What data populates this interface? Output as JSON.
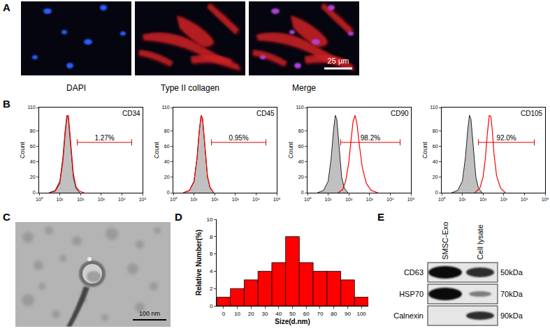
{
  "panel_labels": [
    "A",
    "B",
    "C",
    "D",
    "E"
  ],
  "panel_a": {
    "images": [
      "DAPI",
      "Type II collagen",
      "Merge"
    ],
    "scale_bar": "25 μm"
  },
  "panel_c": {
    "scale_bar": "100 nm"
  },
  "panel_e": {
    "lanes": [
      "SMSC-Exo",
      "Cell lysate"
    ],
    "rows": [
      {
        "label": "CD63",
        "size": "50kDa"
      },
      {
        "label": "HSP70",
        "size": "70kDa"
      },
      {
        "label": "Calnexin",
        "size": "90kDa"
      }
    ]
  },
  "chart_data": [
    {
      "type": "line",
      "title": "CD34",
      "ylabel": "Count",
      "log": "x",
      "xlim": [
        1,
        100000
      ],
      "xticks": [
        {
          "value": 1,
          "label": "10⁰"
        },
        {
          "value": 10,
          "label": "10¹"
        },
        {
          "value": 100,
          "label": "10²"
        },
        {
          "value": 1000,
          "label": "10³"
        },
        {
          "value": 10000,
          "label": "10⁴"
        },
        {
          "value": 100000,
          "label": "10⁵"
        }
      ],
      "ylim": [
        0,
        110
      ],
      "yticks": [
        0,
        20,
        40,
        60,
        80,
        110
      ],
      "gate": {
        "label": "1.27%",
        "x": [
          70,
          30000
        ],
        "y": 65
      },
      "series": [
        {
          "type": "area",
          "color": "#c0c0c0",
          "x": [
            3,
            6,
            10,
            14,
            18,
            22,
            26,
            30,
            36,
            45,
            60,
            90
          ],
          "values": [
            0,
            3,
            15,
            45,
            80,
            100,
            95,
            75,
            45,
            20,
            6,
            0
          ]
        },
        {
          "type": "line",
          "color": "#ff0000",
          "x": [
            3,
            6,
            10,
            14,
            18,
            22,
            26,
            30,
            36,
            45,
            60,
            90,
            150
          ],
          "values": [
            0,
            2,
            12,
            40,
            75,
            98,
            100,
            80,
            50,
            25,
            8,
            2,
            0
          ]
        }
      ]
    },
    {
      "type": "line",
      "title": "CD45",
      "ylabel": "Count",
      "log": "x",
      "xlim": [
        1,
        100000
      ],
      "xticks": [
        {
          "value": 1,
          "label": "10⁰"
        },
        {
          "value": 10,
          "label": "10¹"
        },
        {
          "value": 100,
          "label": "10²"
        },
        {
          "value": 1000,
          "label": "10³"
        },
        {
          "value": 10000,
          "label": "10⁴"
        },
        {
          "value": 100000,
          "label": "10⁵"
        }
      ],
      "ylim": [
        0,
        110
      ],
      "yticks": [
        0,
        20,
        40,
        60,
        80,
        110
      ],
      "gate": {
        "label": "0.95%",
        "x": [
          70,
          30000
        ],
        "y": 65
      },
      "series": [
        {
          "type": "area",
          "color": "#c0c0c0",
          "x": [
            3,
            6,
            10,
            14,
            18,
            22,
            26,
            30,
            36,
            45,
            60,
            90
          ],
          "values": [
            0,
            3,
            15,
            45,
            80,
            100,
            95,
            75,
            45,
            20,
            6,
            0
          ]
        },
        {
          "type": "line",
          "color": "#ff0000",
          "x": [
            3,
            6,
            10,
            14,
            18,
            22,
            26,
            30,
            36,
            45,
            60,
            90
          ],
          "values": [
            0,
            3,
            14,
            44,
            80,
            100,
            96,
            76,
            46,
            21,
            7,
            0
          ]
        }
      ]
    },
    {
      "type": "line",
      "title": "CD90",
      "ylabel": "Count",
      "log": "x",
      "xlim": [
        1,
        100000
      ],
      "xticks": [
        {
          "value": 1,
          "label": "10⁰"
        },
        {
          "value": 10,
          "label": "10¹"
        },
        {
          "value": 100,
          "label": "10²"
        },
        {
          "value": 1000,
          "label": "10³"
        },
        {
          "value": 10000,
          "label": "10⁴"
        },
        {
          "value": 100000,
          "label": "10⁵"
        }
      ],
      "ylim": [
        0,
        110
      ],
      "yticks": [
        0,
        20,
        40,
        60,
        80,
        110
      ],
      "gate": {
        "label": "98.2%",
        "x": [
          40,
          30000
        ],
        "y": 65
      },
      "series": [
        {
          "type": "area",
          "color": "#c0c0c0",
          "x": [
            3,
            6,
            10,
            14,
            18,
            22,
            26,
            30,
            36,
            45,
            60,
            90
          ],
          "values": [
            0,
            3,
            15,
            45,
            80,
            100,
            95,
            75,
            45,
            20,
            6,
            0
          ]
        },
        {
          "type": "line",
          "color": "#ff0000",
          "x": [
            30,
            50,
            70,
            100,
            130,
            160,
            200,
            250,
            320,
            450,
            700,
            1200,
            2500
          ],
          "values": [
            0,
            4,
            15,
            40,
            70,
            92,
            100,
            88,
            62,
            32,
            12,
            3,
            0
          ]
        }
      ]
    },
    {
      "type": "line",
      "title": "CD105",
      "ylabel": "Count",
      "log": "x",
      "xlim": [
        1,
        100000
      ],
      "xticks": [
        {
          "value": 1,
          "label": "10⁰"
        },
        {
          "value": 10,
          "label": "10¹"
        },
        {
          "value": 100,
          "label": "10²"
        },
        {
          "value": 1000,
          "label": "10³"
        },
        {
          "value": 10000,
          "label": "10⁴"
        },
        {
          "value": 100000,
          "label": "10⁵"
        }
      ],
      "ylim": [
        0,
        110
      ],
      "yticks": [
        0,
        20,
        40,
        60,
        80,
        110
      ],
      "gate": {
        "label": "92.0%",
        "x": [
          60,
          30000
        ],
        "y": 65
      },
      "series": [
        {
          "type": "area",
          "color": "#c0c0c0",
          "x": [
            3,
            6,
            10,
            14,
            18,
            22,
            26,
            30,
            36,
            45,
            60,
            90
          ],
          "values": [
            0,
            3,
            15,
            45,
            80,
            100,
            95,
            75,
            45,
            20,
            6,
            0
          ]
        },
        {
          "type": "line",
          "color": "#ff0000",
          "x": [
            40,
            70,
            100,
            130,
            160,
            200,
            240,
            280,
            340,
            450,
            700,
            1200
          ],
          "values": [
            0,
            6,
            20,
            45,
            75,
            100,
            98,
            80,
            50,
            22,
            6,
            0
          ]
        }
      ]
    },
    {
      "type": "bar",
      "xlabel": "Size(d.nm)",
      "ylabel": "Relative Number(%)",
      "x": [
        0,
        10,
        20,
        30,
        40,
        50,
        60,
        70,
        80,
        90,
        100
      ],
      "values": [
        1,
        2,
        3,
        4,
        5,
        8,
        5,
        4,
        4,
        3,
        1
      ],
      "color": "#ff0000",
      "xlim": [
        -5,
        105
      ],
      "xticks": [
        0,
        10,
        20,
        30,
        40,
        50,
        60,
        70,
        80,
        90,
        100
      ],
      "ylim": [
        0,
        10
      ],
      "yticks": [
        0,
        2,
        4,
        6,
        8,
        10
      ]
    }
  ]
}
